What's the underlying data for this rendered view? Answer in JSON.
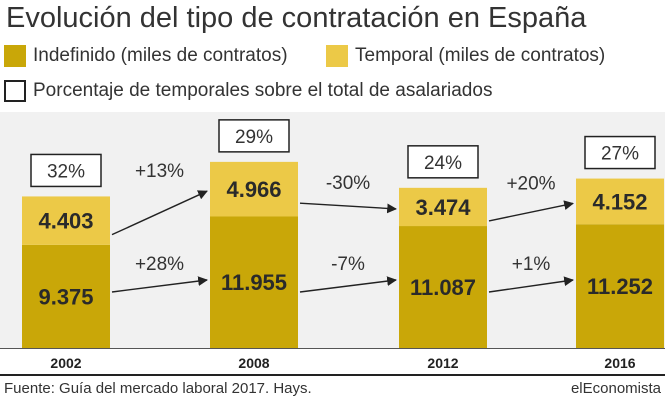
{
  "colors": {
    "indefinido": "#c9a708",
    "temporal": "#ecc947",
    "background": "#f1f1f1",
    "text": "#2a2a2a"
  },
  "chart_data": {
    "type": "bar",
    "title": "Evolución del tipo de contratación en España",
    "categories": [
      "2002",
      "2008",
      "2012",
      "2016"
    ],
    "series": [
      {
        "name": "Indefinido (miles de contratos)",
        "values": [
          9375,
          11955,
          11087,
          11252
        ],
        "labels": [
          "9.375",
          "11.955",
          "11.087",
          "11.252"
        ]
      },
      {
        "name": "Temporal (miles de contratos)",
        "values": [
          4403,
          4966,
          3474,
          4152
        ],
        "labels": [
          "4.403",
          "4.966",
          "3.474",
          "4.152"
        ]
      }
    ],
    "percent_series": {
      "name": "Porcentaje de temporales sobre el total de asalariados",
      "labels": [
        "32%",
        "29%",
        "24%",
        "27%"
      ]
    },
    "changes_temporal": [
      "+13%",
      "-30%",
      "+20%"
    ],
    "changes_indefinido": [
      "+28%",
      "-7%",
      "+1%"
    ],
    "ylim": [
      0,
      17000
    ],
    "source": "Fuente: Guía del mercado laboral 2017. Hays.",
    "brand": "elEconomista"
  }
}
